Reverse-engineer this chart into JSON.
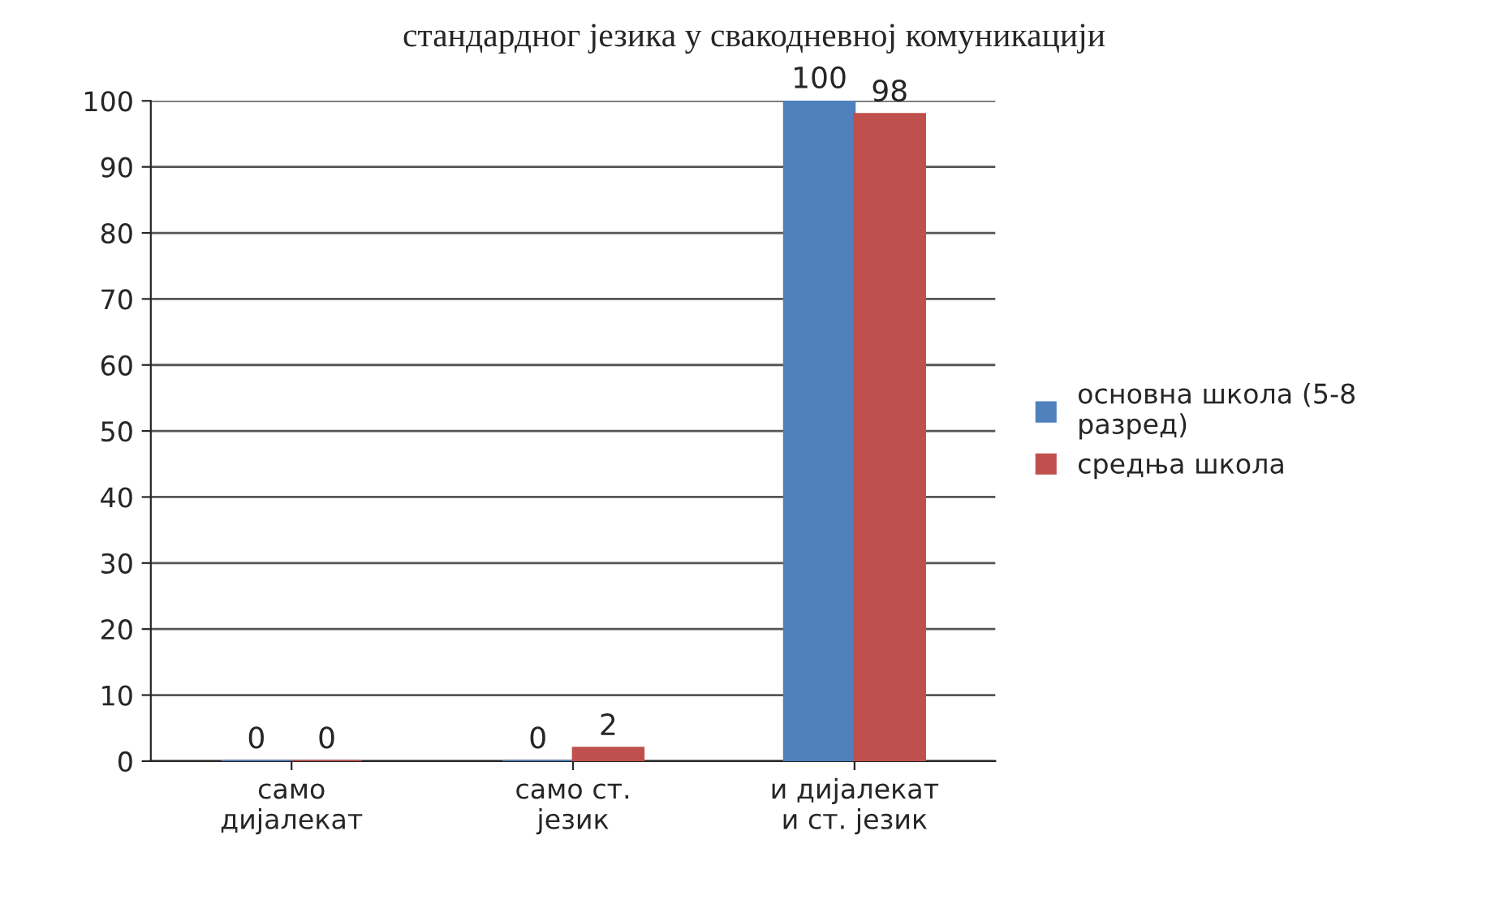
{
  "chart_data": {
    "type": "bar",
    "title": "стандардног језика у свакодневној комуникацији",
    "categories": [
      "само\nдијалекат",
      "само ст.\nјезик",
      "и дијалекат\nи ст. језик"
    ],
    "series": [
      {
        "name": "основна школа (5-8\nразред)",
        "color": "#4f81bd",
        "values": [
          0,
          0,
          100
        ]
      },
      {
        "name": "средња школа",
        "color": "#c0504d",
        "values": [
          0,
          2,
          98
        ]
      }
    ],
    "ylim": [
      0,
      100
    ],
    "yticks": [
      0,
      10,
      20,
      30,
      40,
      50,
      60,
      70,
      80,
      90,
      100
    ],
    "grid": "y",
    "legend": "right",
    "data_labels": true
  }
}
